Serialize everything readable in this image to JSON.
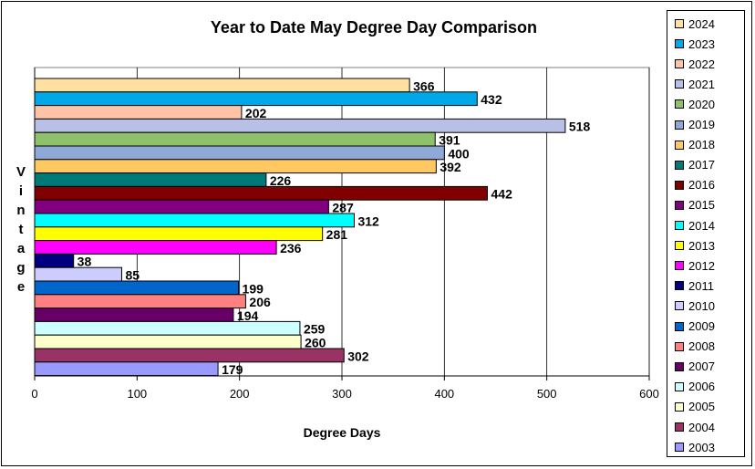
{
  "chart_data": {
    "type": "bar",
    "orientation": "horizontal",
    "title": "Year to Date May Degree Day Comparison",
    "xlabel": "Degree Days",
    "ylabel": "Vintage",
    "xlim": [
      0,
      600
    ],
    "x_ticks": [
      "0",
      "100",
      "200",
      "300",
      "400",
      "500",
      "600"
    ],
    "grid": "vertical",
    "legend_position": "right",
    "series": [
      {
        "name": "2024",
        "value": 366,
        "color": "#FFE0A0"
      },
      {
        "name": "2023",
        "value": 432,
        "color": "#00A8E8"
      },
      {
        "name": "2022",
        "value": 202,
        "color": "#FFC4A8"
      },
      {
        "name": "2021",
        "value": 518,
        "color": "#B8C0E8"
      },
      {
        "name": "2020",
        "value": 391,
        "color": "#8FC06A"
      },
      {
        "name": "2019",
        "value": 400,
        "color": "#8EA8D8"
      },
      {
        "name": "2018",
        "value": 392,
        "color": "#FFC860"
      },
      {
        "name": "2017",
        "value": 226,
        "color": "#007A78"
      },
      {
        "name": "2016",
        "value": 442,
        "color": "#800000"
      },
      {
        "name": "2015",
        "value": 287,
        "color": "#800080"
      },
      {
        "name": "2014",
        "value": 312,
        "color": "#00FFFF"
      },
      {
        "name": "2013",
        "value": 281,
        "color": "#FFFF00"
      },
      {
        "name": "2012",
        "value": 236,
        "color": "#FF00FF"
      },
      {
        "name": "2011",
        "value": 38,
        "color": "#000080"
      },
      {
        "name": "2010",
        "value": 85,
        "color": "#CCCCFF"
      },
      {
        "name": "2009",
        "value": 199,
        "color": "#0066CC"
      },
      {
        "name": "2008",
        "value": 206,
        "color": "#FF8080"
      },
      {
        "name": "2007",
        "value": 194,
        "color": "#660066"
      },
      {
        "name": "2006",
        "value": 259,
        "color": "#CCFFFF"
      },
      {
        "name": "2005",
        "value": 260,
        "color": "#FFFFCC"
      },
      {
        "name": "2004",
        "value": 302,
        "color": "#993366"
      },
      {
        "name": "2003",
        "value": 179,
        "color": "#9999FF"
      }
    ]
  }
}
